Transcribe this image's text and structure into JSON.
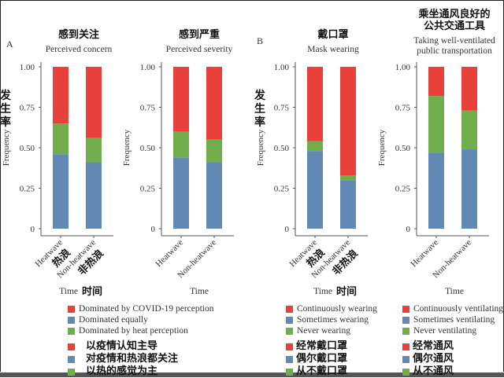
{
  "colors": {
    "red": "#e8413b",
    "blue": "#6289b4",
    "green": "#72ad4b",
    "axis": "#555555"
  },
  "panel_labels": {
    "a": "A",
    "b": "B"
  },
  "y_axis": {
    "label_zh": "发生率",
    "label_en": "Frequency",
    "ticks": [
      "0",
      "0.25",
      "0.50",
      "0.75",
      "1.00"
    ]
  },
  "x_axis": {
    "label_en": "Time",
    "label_zh": "时间",
    "categories_en": [
      "Heatwave",
      "Non-heatwave"
    ],
    "categories_zh": [
      "热浪",
      "非热浪"
    ]
  },
  "chart_data": [
    {
      "type": "bar",
      "stacked": true,
      "title_zh": "感到关注",
      "title": "Perceived concern",
      "categories": [
        "Heatwave",
        "Non-heatwave"
      ],
      "xlabel": "Time",
      "ylabel": "Frequency",
      "ylim": [
        0,
        1
      ],
      "series": [
        {
          "name": "Dominated equally",
          "color": "blue",
          "values": [
            0.46,
            0.41
          ]
        },
        {
          "name": "Dominated by heat perception",
          "color": "green",
          "values": [
            0.19,
            0.15
          ]
        },
        {
          "name": "Dominated by COVID-19 perception",
          "color": "red",
          "values": [
            0.35,
            0.44
          ]
        }
      ]
    },
    {
      "type": "bar",
      "stacked": true,
      "title_zh": "感到严重",
      "title": "Perceived severity",
      "categories": [
        "Heatwave",
        "Non-heatwave"
      ],
      "xlabel": "Time",
      "ylabel": "Frequency",
      "ylim": [
        0,
        1
      ],
      "series": [
        {
          "name": "Dominated equally",
          "color": "blue",
          "values": [
            0.44,
            0.41
          ]
        },
        {
          "name": "Dominated by heat perception",
          "color": "green",
          "values": [
            0.16,
            0.14
          ]
        },
        {
          "name": "Dominated by COVID-19 perception",
          "color": "red",
          "values": [
            0.4,
            0.45
          ]
        }
      ]
    },
    {
      "type": "bar",
      "stacked": true,
      "title_zh": "戴口罩",
      "title": "Mask wearing",
      "categories": [
        "Heatwave",
        "Non-heatwave"
      ],
      "xlabel": "Time",
      "ylabel": "Frequency",
      "ylim": [
        0,
        1
      ],
      "series": [
        {
          "name": "Sometimes wearing",
          "color": "blue",
          "values": [
            0.48,
            0.3
          ]
        },
        {
          "name": "Never wearing",
          "color": "green",
          "values": [
            0.06,
            0.03
          ]
        },
        {
          "name": "Continuously wearing",
          "color": "red",
          "values": [
            0.46,
            0.67
          ]
        }
      ]
    },
    {
      "type": "bar",
      "stacked": true,
      "title_zh": "乘坐通风良好的公共交通工具",
      "title_zh_lines": [
        "乘坐通风良好的",
        "公共交通工具"
      ],
      "title": "Taking well-ventilated public transportation",
      "title_lines": [
        "Taking well-ventilated",
        "public transportation"
      ],
      "categories": [
        "Heatwave",
        "Non-heatwave"
      ],
      "xlabel": "Time",
      "ylabel": "Frequency",
      "ylim": [
        0,
        1
      ],
      "series": [
        {
          "name": "Sometimes ventilating",
          "color": "blue",
          "values": [
            0.47,
            0.49
          ]
        },
        {
          "name": "Never ventilating",
          "color": "green",
          "values": [
            0.35,
            0.24
          ]
        },
        {
          "name": "Continuously ventilating",
          "color": "red",
          "values": [
            0.18,
            0.27
          ]
        }
      ]
    }
  ],
  "legends": {
    "perception": {
      "en": [
        "Dominated by COVID-19 perception",
        "Dominated equally",
        "Dominated by heat perception"
      ],
      "zh": [
        "以疫情认知主导",
        "对疫情和热浪都关注",
        "以热的感觉为主"
      ]
    },
    "mask": {
      "en": [
        "Continuously wearing",
        "Sometimes wearing",
        "Never wearing"
      ],
      "zh": [
        "经常戴口罩",
        "偶尔戴口罩",
        "从不戴口罩"
      ]
    },
    "ventilation": {
      "en": [
        "Continuously ventilating",
        "Sometimes ventilating",
        "Never ventilating"
      ],
      "zh": [
        "经常通风",
        "偶尔通风",
        "从不通风"
      ]
    },
    "order_colors": [
      "red",
      "blue",
      "green"
    ]
  }
}
